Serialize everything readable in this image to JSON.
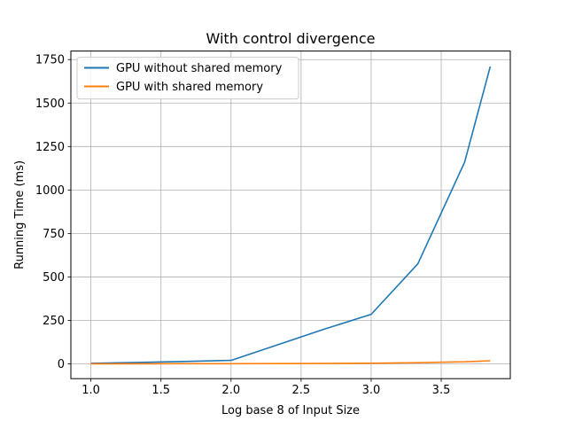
{
  "chart_data": {
    "type": "line",
    "title": "With control divergence",
    "xlabel": "Log base 8 of Input Size",
    "ylabel": "Running Time (ms)",
    "xlim": [
      0.857,
      3.993
    ],
    "ylim": [
      -85,
      1799
    ],
    "xticks": [
      1.0,
      1.5,
      2.0,
      2.5,
      3.0,
      3.5
    ],
    "xtick_labels": [
      "1.0",
      "1.5",
      "2.0",
      "2.5",
      "3.0",
      "3.5"
    ],
    "yticks": [
      0,
      250,
      500,
      750,
      1000,
      1250,
      1500,
      1750
    ],
    "ytick_labels": [
      "0",
      "250",
      "500",
      "750",
      "1000",
      "1250",
      "1500",
      "1750"
    ],
    "grid": true,
    "legend_position": "upper-left",
    "series": [
      {
        "name": "GPU without shared memory",
        "color": "#1f77b4",
        "x": [
          1.0,
          1.333,
          1.667,
          2.0,
          2.333,
          2.667,
          3.0,
          3.333,
          3.667,
          3.85
        ],
        "y": [
          3,
          8,
          14,
          20,
          110,
          200,
          285,
          575,
          1160,
          1710
        ]
      },
      {
        "name": "GPU with shared memory",
        "color": "#ff7f0e",
        "x": [
          1.0,
          1.333,
          1.667,
          2.0,
          2.333,
          2.667,
          3.0,
          3.333,
          3.667,
          3.85
        ],
        "y": [
          0.5,
          0.7,
          0.9,
          1.2,
          1.8,
          2.5,
          3.5,
          7,
          12,
          18
        ]
      }
    ]
  }
}
